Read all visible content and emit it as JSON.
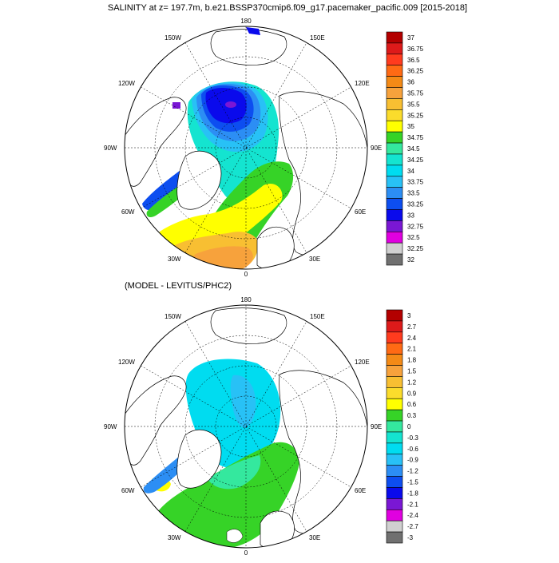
{
  "top_panel": {
    "title": "SALINITY at z= 197.7m, b.e21.BSSP370cmip6.f09_g17.pacemaker_pacific.009 [2015-2018]",
    "lon_labels": [
      "180",
      "150E",
      "120E",
      "90E",
      "60E",
      "30E",
      "0",
      "30W",
      "60W",
      "90W",
      "120W",
      "150W"
    ],
    "colorbar": {
      "labels": [
        "37",
        "36.75",
        "36.5",
        "36.25",
        "36",
        "35.75",
        "35.5",
        "35.25",
        "35",
        "34.75",
        "34.5",
        "34.25",
        "34",
        "33.75",
        "33.5",
        "33.25",
        "33",
        "32.75",
        "32.5",
        "32.25",
        "32"
      ],
      "colors": [
        "#b30000",
        "#dd1a1a",
        "#ff3b1e",
        "#ff6a14",
        "#f48a16",
        "#f7a23c",
        "#f8bf32",
        "#fbdc2c",
        "#ffff00",
        "#36d327",
        "#34e89e",
        "#14e4d0",
        "#00dcf0",
        "#28c1f6",
        "#2c8ef4",
        "#0d4ef0",
        "#0a0aec",
        "#7a17d4",
        "#e000e0",
        "#d0d0d0"
      ]
    }
  },
  "bottom_panel": {
    "title": "(MODEL - LEVITUS/PHC2)",
    "lon_labels": [
      "180",
      "150E",
      "120E",
      "90E",
      "60E",
      "30E",
      "0",
      "30W",
      "60W",
      "90W",
      "120W",
      "150W"
    ],
    "colorbar": {
      "labels": [
        "3",
        "2.7",
        "2.4",
        "2.1",
        "1.8",
        "1.5",
        "1.2",
        "0.9",
        "0.6",
        "0.3",
        "0",
        "-0.3",
        "-0.6",
        "-0.9",
        "-1.2",
        "-1.5",
        "-1.8",
        "-2.1",
        "-2.4",
        "-2.7",
        "-3"
      ],
      "colors": [
        "#b30000",
        "#dd1a1a",
        "#ff3b1e",
        "#ff6a14",
        "#f48a16",
        "#f7a23c",
        "#f8bf32",
        "#fbdc2c",
        "#ffff00",
        "#36d327",
        "#34e89e",
        "#14e4d0",
        "#00dcf0",
        "#28c1f6",
        "#2c8ef4",
        "#0d4ef0",
        "#0a0aec",
        "#7a17d4",
        "#e000e0",
        "#d0d0d0"
      ]
    }
  },
  "colors": {
    "land": "#ffffff",
    "coast": "#000000",
    "grid": "#000000",
    "cbar_extreme": "#707070"
  }
}
